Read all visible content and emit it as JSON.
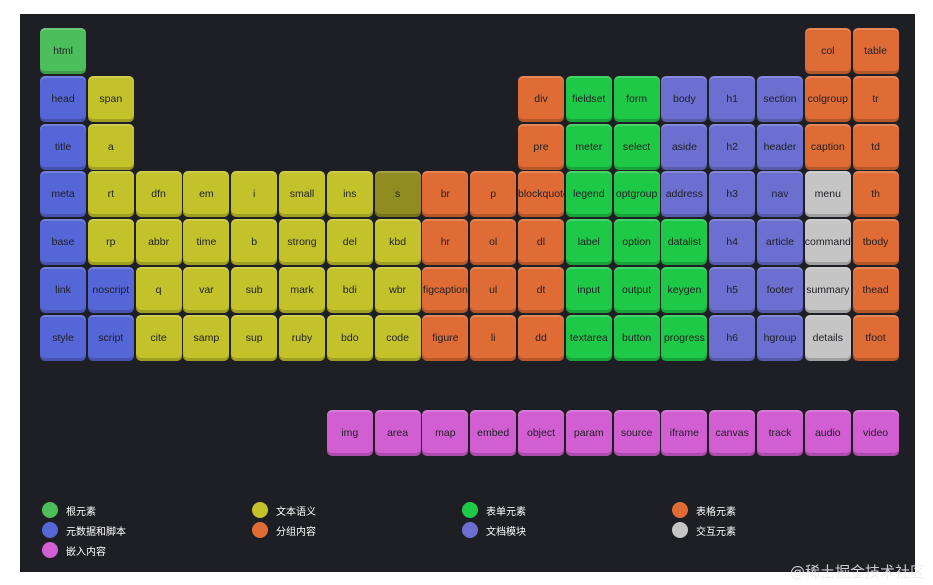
{
  "colors": {
    "root": "#4cbf5c",
    "meta": "#5566d6",
    "text": "#c4c22a",
    "text_dark": "#8f8c20",
    "group": "#e06c35",
    "form": "#1ec947",
    "section": "#6c6fd0",
    "table": "#e06c35",
    "interactive": "#c5c5c5",
    "embed": "#d15fd2"
  },
  "elements": [
    {
      "label": "html",
      "row": 0,
      "col": 0,
      "cat": "root"
    },
    {
      "label": "col",
      "row": 0,
      "col": 16,
      "cat": "table"
    },
    {
      "label": "table",
      "row": 0,
      "col": 17,
      "cat": "table"
    },
    {
      "label": "head",
      "row": 1,
      "col": 0,
      "cat": "meta"
    },
    {
      "label": "span",
      "row": 1,
      "col": 1,
      "cat": "text"
    },
    {
      "label": "div",
      "row": 1,
      "col": 10,
      "cat": "group"
    },
    {
      "label": "fieldset",
      "row": 1,
      "col": 11,
      "cat": "form"
    },
    {
      "label": "form",
      "row": 1,
      "col": 12,
      "cat": "form"
    },
    {
      "label": "body",
      "row": 1,
      "col": 13,
      "cat": "section"
    },
    {
      "label": "h1",
      "row": 1,
      "col": 14,
      "cat": "section"
    },
    {
      "label": "section",
      "row": 1,
      "col": 15,
      "cat": "section"
    },
    {
      "label": "colgroup",
      "row": 1,
      "col": 16,
      "cat": "table"
    },
    {
      "label": "tr",
      "row": 1,
      "col": 17,
      "cat": "table"
    },
    {
      "label": "title",
      "row": 2,
      "col": 0,
      "cat": "meta"
    },
    {
      "label": "a",
      "row": 2,
      "col": 1,
      "cat": "text"
    },
    {
      "label": "pre",
      "row": 2,
      "col": 10,
      "cat": "group"
    },
    {
      "label": "meter",
      "row": 2,
      "col": 11,
      "cat": "form"
    },
    {
      "label": "select",
      "row": 2,
      "col": 12,
      "cat": "form"
    },
    {
      "label": "aside",
      "row": 2,
      "col": 13,
      "cat": "section"
    },
    {
      "label": "h2",
      "row": 2,
      "col": 14,
      "cat": "section"
    },
    {
      "label": "header",
      "row": 2,
      "col": 15,
      "cat": "section"
    },
    {
      "label": "caption",
      "row": 2,
      "col": 16,
      "cat": "table"
    },
    {
      "label": "td",
      "row": 2,
      "col": 17,
      "cat": "table"
    },
    {
      "label": "meta",
      "row": 3,
      "col": 0,
      "cat": "meta"
    },
    {
      "label": "rt",
      "row": 3,
      "col": 1,
      "cat": "text"
    },
    {
      "label": "dfn",
      "row": 3,
      "col": 2,
      "cat": "text"
    },
    {
      "label": "em",
      "row": 3,
      "col": 3,
      "cat": "text"
    },
    {
      "label": "i",
      "row": 3,
      "col": 4,
      "cat": "text"
    },
    {
      "label": "small",
      "row": 3,
      "col": 5,
      "cat": "text"
    },
    {
      "label": "ins",
      "row": 3,
      "col": 6,
      "cat": "text"
    },
    {
      "label": "s",
      "row": 3,
      "col": 7,
      "cat": "text_dark"
    },
    {
      "label": "br",
      "row": 3,
      "col": 8,
      "cat": "group"
    },
    {
      "label": "p",
      "row": 3,
      "col": 9,
      "cat": "group"
    },
    {
      "label": "blockquote",
      "row": 3,
      "col": 10,
      "cat": "group"
    },
    {
      "label": "legend",
      "row": 3,
      "col": 11,
      "cat": "form"
    },
    {
      "label": "optgroup",
      "row": 3,
      "col": 12,
      "cat": "form"
    },
    {
      "label": "address",
      "row": 3,
      "col": 13,
      "cat": "section"
    },
    {
      "label": "h3",
      "row": 3,
      "col": 14,
      "cat": "section"
    },
    {
      "label": "nav",
      "row": 3,
      "col": 15,
      "cat": "section"
    },
    {
      "label": "menu",
      "row": 3,
      "col": 16,
      "cat": "interactive"
    },
    {
      "label": "th",
      "row": 3,
      "col": 17,
      "cat": "table"
    },
    {
      "label": "base",
      "row": 4,
      "col": 0,
      "cat": "meta"
    },
    {
      "label": "rp",
      "row": 4,
      "col": 1,
      "cat": "text"
    },
    {
      "label": "abbr",
      "row": 4,
      "col": 2,
      "cat": "text"
    },
    {
      "label": "time",
      "row": 4,
      "col": 3,
      "cat": "text"
    },
    {
      "label": "b",
      "row": 4,
      "col": 4,
      "cat": "text"
    },
    {
      "label": "strong",
      "row": 4,
      "col": 5,
      "cat": "text"
    },
    {
      "label": "del",
      "row": 4,
      "col": 6,
      "cat": "text"
    },
    {
      "label": "kbd",
      "row": 4,
      "col": 7,
      "cat": "text"
    },
    {
      "label": "hr",
      "row": 4,
      "col": 8,
      "cat": "group"
    },
    {
      "label": "ol",
      "row": 4,
      "col": 9,
      "cat": "group"
    },
    {
      "label": "dl",
      "row": 4,
      "col": 10,
      "cat": "group"
    },
    {
      "label": "label",
      "row": 4,
      "col": 11,
      "cat": "form"
    },
    {
      "label": "option",
      "row": 4,
      "col": 12,
      "cat": "form"
    },
    {
      "label": "datalist",
      "row": 4,
      "col": 13,
      "cat": "form"
    },
    {
      "label": "h4",
      "row": 4,
      "col": 14,
      "cat": "section"
    },
    {
      "label": "article",
      "row": 4,
      "col": 15,
      "cat": "section"
    },
    {
      "label": "command",
      "row": 4,
      "col": 16,
      "cat": "interactive"
    },
    {
      "label": "tbody",
      "row": 4,
      "col": 17,
      "cat": "table"
    },
    {
      "label": "link",
      "row": 5,
      "col": 0,
      "cat": "meta"
    },
    {
      "label": "noscript",
      "row": 5,
      "col": 1,
      "cat": "meta"
    },
    {
      "label": "q",
      "row": 5,
      "col": 2,
      "cat": "text"
    },
    {
      "label": "var",
      "row": 5,
      "col": 3,
      "cat": "text"
    },
    {
      "label": "sub",
      "row": 5,
      "col": 4,
      "cat": "text"
    },
    {
      "label": "mark",
      "row": 5,
      "col": 5,
      "cat": "text"
    },
    {
      "label": "bdi",
      "row": 5,
      "col": 6,
      "cat": "text"
    },
    {
      "label": "wbr",
      "row": 5,
      "col": 7,
      "cat": "text"
    },
    {
      "label": "figcaption",
      "row": 5,
      "col": 8,
      "cat": "group"
    },
    {
      "label": "ul",
      "row": 5,
      "col": 9,
      "cat": "group"
    },
    {
      "label": "dt",
      "row": 5,
      "col": 10,
      "cat": "group"
    },
    {
      "label": "input",
      "row": 5,
      "col": 11,
      "cat": "form"
    },
    {
      "label": "output",
      "row": 5,
      "col": 12,
      "cat": "form"
    },
    {
      "label": "keygen",
      "row": 5,
      "col": 13,
      "cat": "form"
    },
    {
      "label": "h5",
      "row": 5,
      "col": 14,
      "cat": "section"
    },
    {
      "label": "footer",
      "row": 5,
      "col": 15,
      "cat": "section"
    },
    {
      "label": "summary",
      "row": 5,
      "col": 16,
      "cat": "interactive"
    },
    {
      "label": "thead",
      "row": 5,
      "col": 17,
      "cat": "table"
    },
    {
      "label": "style",
      "row": 6,
      "col": 0,
      "cat": "meta"
    },
    {
      "label": "script",
      "row": 6,
      "col": 1,
      "cat": "meta"
    },
    {
      "label": "cite",
      "row": 6,
      "col": 2,
      "cat": "text"
    },
    {
      "label": "samp",
      "row": 6,
      "col": 3,
      "cat": "text"
    },
    {
      "label": "sup",
      "row": 6,
      "col": 4,
      "cat": "text"
    },
    {
      "label": "ruby",
      "row": 6,
      "col": 5,
      "cat": "text"
    },
    {
      "label": "bdo",
      "row": 6,
      "col": 6,
      "cat": "text"
    },
    {
      "label": "code",
      "row": 6,
      "col": 7,
      "cat": "text"
    },
    {
      "label": "figure",
      "row": 6,
      "col": 8,
      "cat": "group"
    },
    {
      "label": "li",
      "row": 6,
      "col": 9,
      "cat": "group"
    },
    {
      "label": "dd",
      "row": 6,
      "col": 10,
      "cat": "group"
    },
    {
      "label": "textarea",
      "row": 6,
      "col": 11,
      "cat": "form"
    },
    {
      "label": "button",
      "row": 6,
      "col": 12,
      "cat": "form"
    },
    {
      "label": "progress",
      "row": 6,
      "col": 13,
      "cat": "form"
    },
    {
      "label": "h6",
      "row": 6,
      "col": 14,
      "cat": "section"
    },
    {
      "label": "hgroup",
      "row": 6,
      "col": 15,
      "cat": "section"
    },
    {
      "label": "details",
      "row": 6,
      "col": 16,
      "cat": "interactive"
    },
    {
      "label": "tfoot",
      "row": 6,
      "col": 17,
      "cat": "table"
    },
    {
      "label": "img",
      "row": 8,
      "col": 6,
      "cat": "embed"
    },
    {
      "label": "area",
      "row": 8,
      "col": 7,
      "cat": "embed"
    },
    {
      "label": "map",
      "row": 8,
      "col": 8,
      "cat": "embed"
    },
    {
      "label": "embed",
      "row": 8,
      "col": 9,
      "cat": "embed"
    },
    {
      "label": "object",
      "row": 8,
      "col": 10,
      "cat": "embed"
    },
    {
      "label": "param",
      "row": 8,
      "col": 11,
      "cat": "embed"
    },
    {
      "label": "source",
      "row": 8,
      "col": 12,
      "cat": "embed"
    },
    {
      "label": "iframe",
      "row": 8,
      "col": 13,
      "cat": "embed"
    },
    {
      "label": "canvas",
      "row": 8,
      "col": 14,
      "cat": "embed"
    },
    {
      "label": "track",
      "row": 8,
      "col": 15,
      "cat": "embed"
    },
    {
      "label": "audio",
      "row": 8,
      "col": 16,
      "cat": "embed"
    },
    {
      "label": "video",
      "row": 8,
      "col": 17,
      "cat": "embed"
    }
  ],
  "legend": [
    {
      "label": "根元素",
      "cat": "root"
    },
    {
      "label": "文本语义",
      "cat": "text"
    },
    {
      "label": "表单元素",
      "cat": "form"
    },
    {
      "label": "表格元素",
      "cat": "table"
    },
    {
      "label": "元数据和脚本",
      "cat": "meta"
    },
    {
      "label": "分组内容",
      "cat": "group"
    },
    {
      "label": "文档模块",
      "cat": "section"
    },
    {
      "label": "交互元素",
      "cat": "interactive"
    },
    {
      "label": "嵌入内容",
      "cat": "embed"
    }
  ],
  "watermark": "@稀土掘金技术社区"
}
